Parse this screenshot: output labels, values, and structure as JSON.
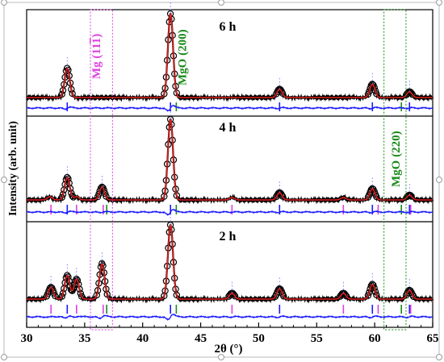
{
  "chart_data": {
    "type": "line",
    "xlabel": "2θ (°)",
    "ylabel": "Intensity (arb. unit)",
    "xlim": [
      30,
      65
    ],
    "xticks": [
      30,
      35,
      40,
      45,
      50,
      55,
      60,
      65
    ],
    "grid": false,
    "annotations": [
      {
        "text": "Mg (11",
        "text_overbar": "1",
        "text_after": ")",
        "color": "#e040e0",
        "x": 35.5
      },
      {
        "text": "MgO (200)",
        "color": "#1a8a1a",
        "x": 43.4
      },
      {
        "text": "MgO (220)",
        "color": "#1a8a1a",
        "x": 62.3
      }
    ],
    "panels": [
      {
        "label": "6 h",
        "peaks": [
          {
            "x": 33.5,
            "h": 0.35
          },
          {
            "x": 42.4,
            "h": 1.0
          },
          {
            "x": 51.8,
            "h": 0.1
          },
          {
            "x": 59.8,
            "h": 0.16
          },
          {
            "x": 63.0,
            "h": 0.07
          }
        ],
        "reflections_blue": [
          33.5,
          42.4,
          51.8,
          59.8,
          63.0
        ],
        "reflections_magenta": [],
        "reflections_green": [
          42.9,
          62.3
        ]
      },
      {
        "label": "4 h",
        "peaks": [
          {
            "x": 32.0,
            "h": 0.04
          },
          {
            "x": 33.5,
            "h": 0.28
          },
          {
            "x": 34.3,
            "h": 0.04
          },
          {
            "x": 36.5,
            "h": 0.16
          },
          {
            "x": 42.4,
            "h": 1.0
          },
          {
            "x": 47.7,
            "h": 0.03
          },
          {
            "x": 51.8,
            "h": 0.09
          },
          {
            "x": 57.3,
            "h": 0.03
          },
          {
            "x": 59.8,
            "h": 0.14
          },
          {
            "x": 63.0,
            "h": 0.06
          }
        ],
        "reflections_blue": [
          33.5,
          42.4,
          51.8,
          59.8,
          63.0
        ],
        "reflections_magenta": [
          32.1,
          34.3,
          36.6,
          47.7,
          57.3,
          60.3,
          63.1
        ],
        "reflections_green": [
          36.9,
          42.9,
          62.3
        ]
      },
      {
        "label": "2 h",
        "peaks": [
          {
            "x": 32.1,
            "h": 0.16
          },
          {
            "x": 33.5,
            "h": 0.32
          },
          {
            "x": 34.3,
            "h": 0.27
          },
          {
            "x": 36.5,
            "h": 0.48
          },
          {
            "x": 42.4,
            "h": 1.0
          },
          {
            "x": 47.7,
            "h": 0.08
          },
          {
            "x": 51.8,
            "h": 0.14
          },
          {
            "x": 57.3,
            "h": 0.08
          },
          {
            "x": 59.8,
            "h": 0.2
          },
          {
            "x": 63.0,
            "h": 0.12
          }
        ],
        "reflections_blue": [
          33.5,
          42.4,
          51.8,
          59.8,
          63.0
        ],
        "reflections_magenta": [
          32.1,
          34.3,
          36.6,
          47.7,
          57.3,
          60.3,
          63.1
        ],
        "reflections_green": [
          36.9,
          42.9,
          62.3
        ]
      }
    ],
    "series": [
      {
        "style": "observed",
        "marker": "open-circle",
        "color": "#000000"
      },
      {
        "style": "calculated",
        "color": "#e02020"
      },
      {
        "style": "difference",
        "color": "#1a1aff"
      }
    ]
  }
}
